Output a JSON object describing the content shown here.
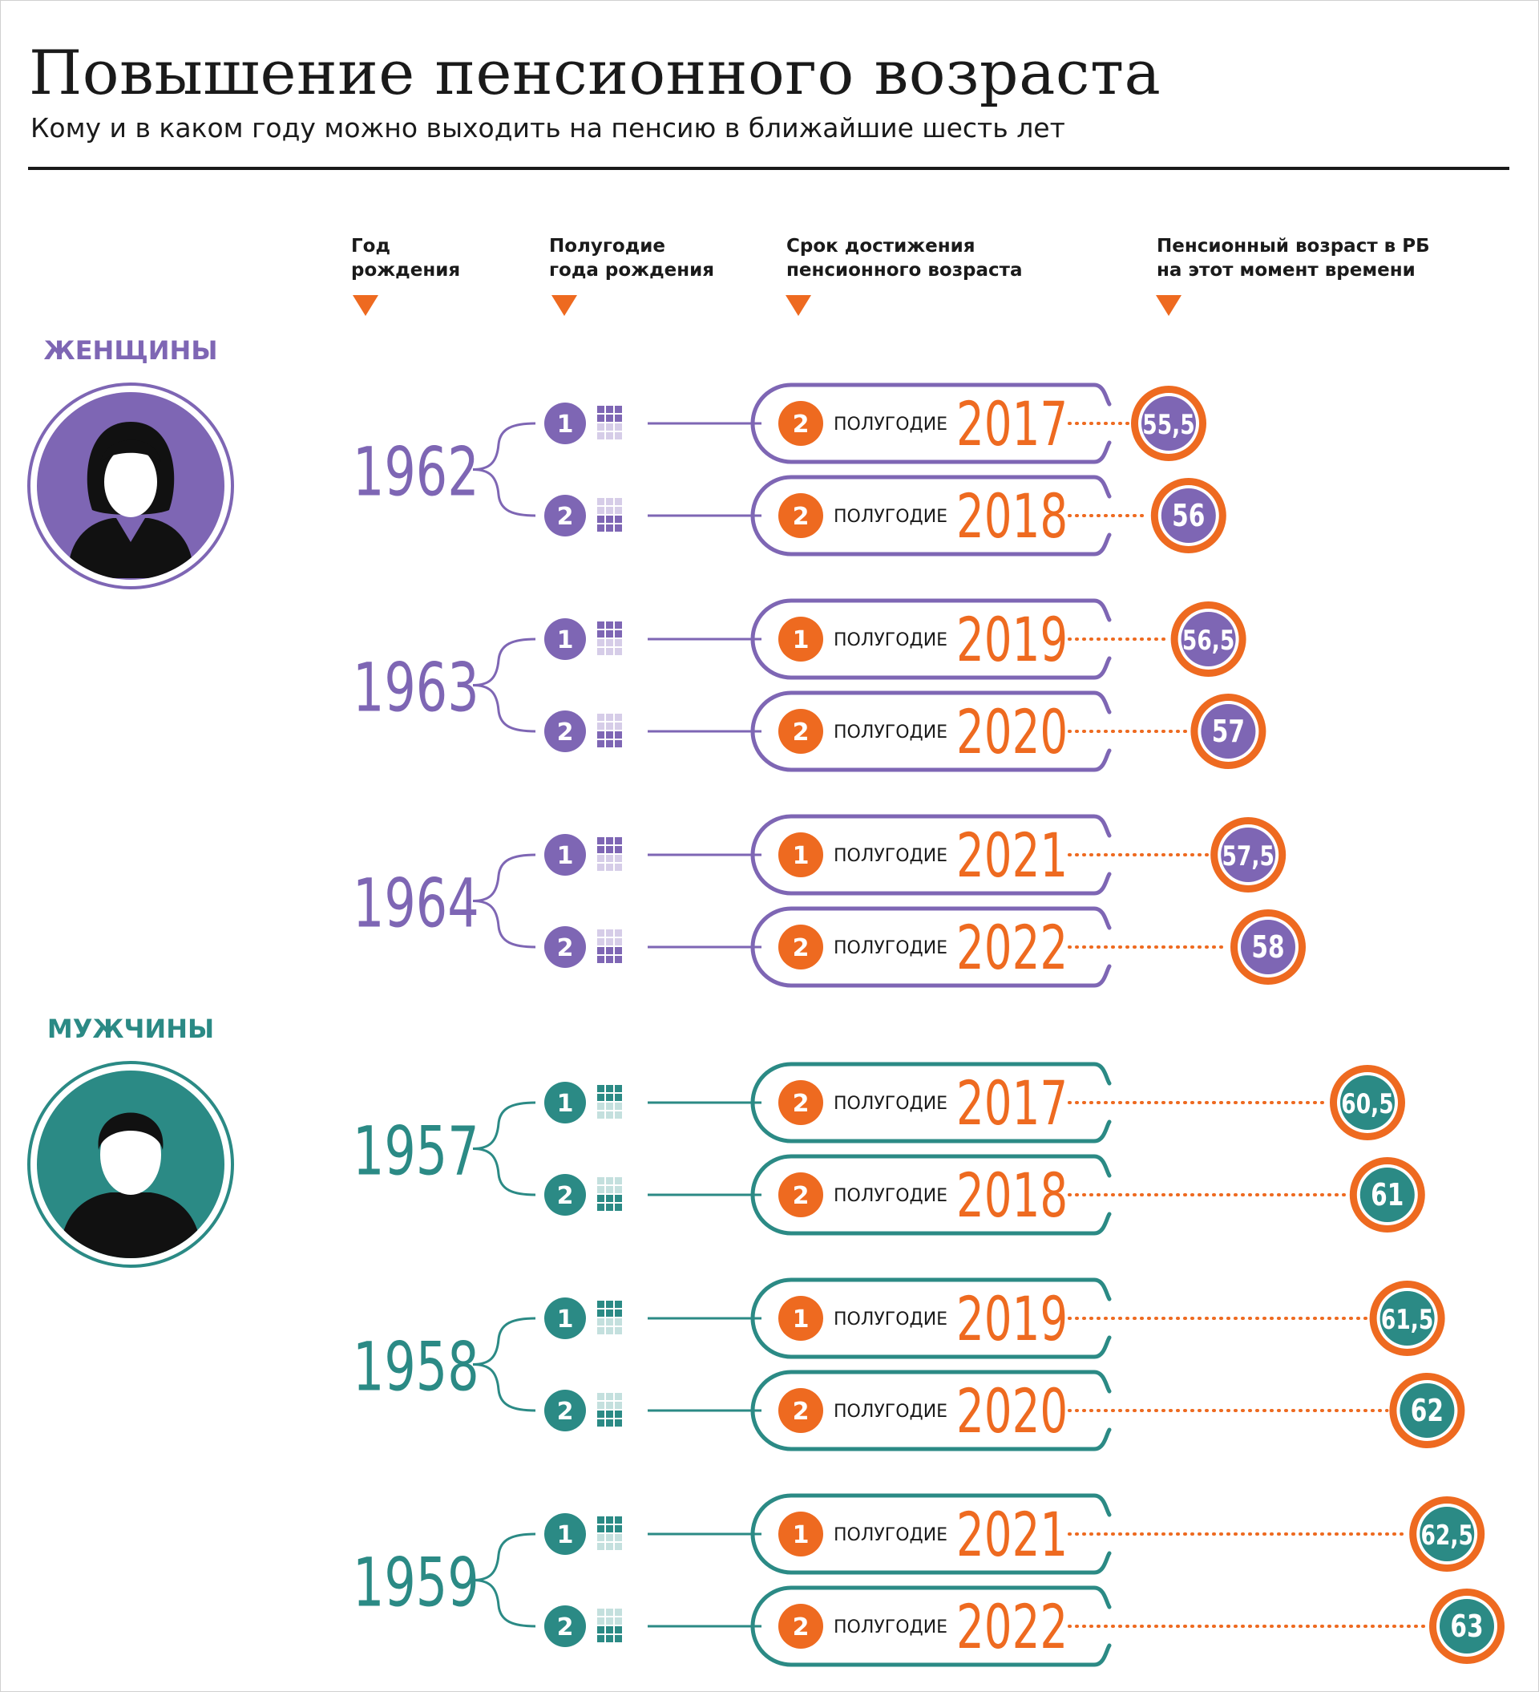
{
  "header": {
    "title": "Повышение пенсионного возраста",
    "subtitle": "Кому и в каком году можно выходить на пенсию в ближайшие шесть лет"
  },
  "columns": [
    {
      "lines": [
        "Год",
        "рождения"
      ]
    },
    {
      "lines": [
        "Полугодие",
        "года рождения"
      ]
    },
    {
      "lines": [
        "Срок достижения",
        "пенсионного возраста"
      ]
    },
    {
      "lines": [
        "Пенсионный возраст в РБ",
        "на этот момент времени"
      ]
    }
  ],
  "colors": {
    "women": "#7e66b4",
    "women_light": "#d6cde8",
    "men": "#2b8a85",
    "men_light": "#c4e0de",
    "accent": "#ee6a20",
    "text": "#1a1a1a"
  },
  "chart_data": {
    "type": "table",
    "title": "Повышение пенсионного возраста",
    "groups": [
      {
        "label": "ЖЕНЩИНЫ",
        "icon": "woman-avatar-icon",
        "color_key": "women",
        "cohorts": [
          {
            "birth_year": "1962",
            "rows": [
              {
                "birth_half": "1",
                "retire_half": "2",
                "half_word": "ПОЛУГОДИЕ",
                "retire_year": "2017",
                "age": "55,5",
                "age_value": 55.5
              },
              {
                "birth_half": "2",
                "retire_half": "2",
                "half_word": "ПОЛУГОДИЕ",
                "retire_year": "2018",
                "age": "56",
                "age_value": 56
              }
            ]
          },
          {
            "birth_year": "1963",
            "rows": [
              {
                "birth_half": "1",
                "retire_half": "1",
                "half_word": "ПОЛУГОДИЕ",
                "retire_year": "2019",
                "age": "56,5",
                "age_value": 56.5
              },
              {
                "birth_half": "2",
                "retire_half": "2",
                "half_word": "ПОЛУГОДИЕ",
                "retire_year": "2020",
                "age": "57",
                "age_value": 57
              }
            ]
          },
          {
            "birth_year": "1964",
            "rows": [
              {
                "birth_half": "1",
                "retire_half": "1",
                "half_word": "ПОЛУГОДИЕ",
                "retire_year": "2021",
                "age": "57,5",
                "age_value": 57.5
              },
              {
                "birth_half": "2",
                "retire_half": "2",
                "half_word": "ПОЛУГОДИЕ",
                "retire_year": "2022",
                "age": "58",
                "age_value": 58
              }
            ]
          }
        ]
      },
      {
        "label": "МУЖЧИНЫ",
        "icon": "man-avatar-icon",
        "color_key": "men",
        "cohorts": [
          {
            "birth_year": "1957",
            "rows": [
              {
                "birth_half": "1",
                "retire_half": "2",
                "half_word": "ПОЛУГОДИЕ",
                "retire_year": "2017",
                "age": "60,5",
                "age_value": 60.5
              },
              {
                "birth_half": "2",
                "retire_half": "2",
                "half_word": "ПОЛУГОДИЕ",
                "retire_year": "2018",
                "age": "61",
                "age_value": 61
              }
            ]
          },
          {
            "birth_year": "1958",
            "rows": [
              {
                "birth_half": "1",
                "retire_half": "1",
                "half_word": "ПОЛУГОДИЕ",
                "retire_year": "2019",
                "age": "61,5",
                "age_value": 61.5
              },
              {
                "birth_half": "2",
                "retire_half": "2",
                "half_word": "ПОЛУГОДИЕ",
                "retire_year": "2020",
                "age": "62",
                "age_value": 62
              }
            ]
          },
          {
            "birth_year": "1959",
            "rows": [
              {
                "birth_half": "1",
                "retire_half": "1",
                "half_word": "ПОЛУГОДИЕ",
                "retire_year": "2021",
                "age": "62,5",
                "age_value": 62.5
              },
              {
                "birth_half": "2",
                "retire_half": "2",
                "half_word": "ПОЛУГОДИЕ",
                "retire_year": "2022",
                "age": "63",
                "age_value": 63
              }
            ]
          }
        ]
      }
    ]
  }
}
